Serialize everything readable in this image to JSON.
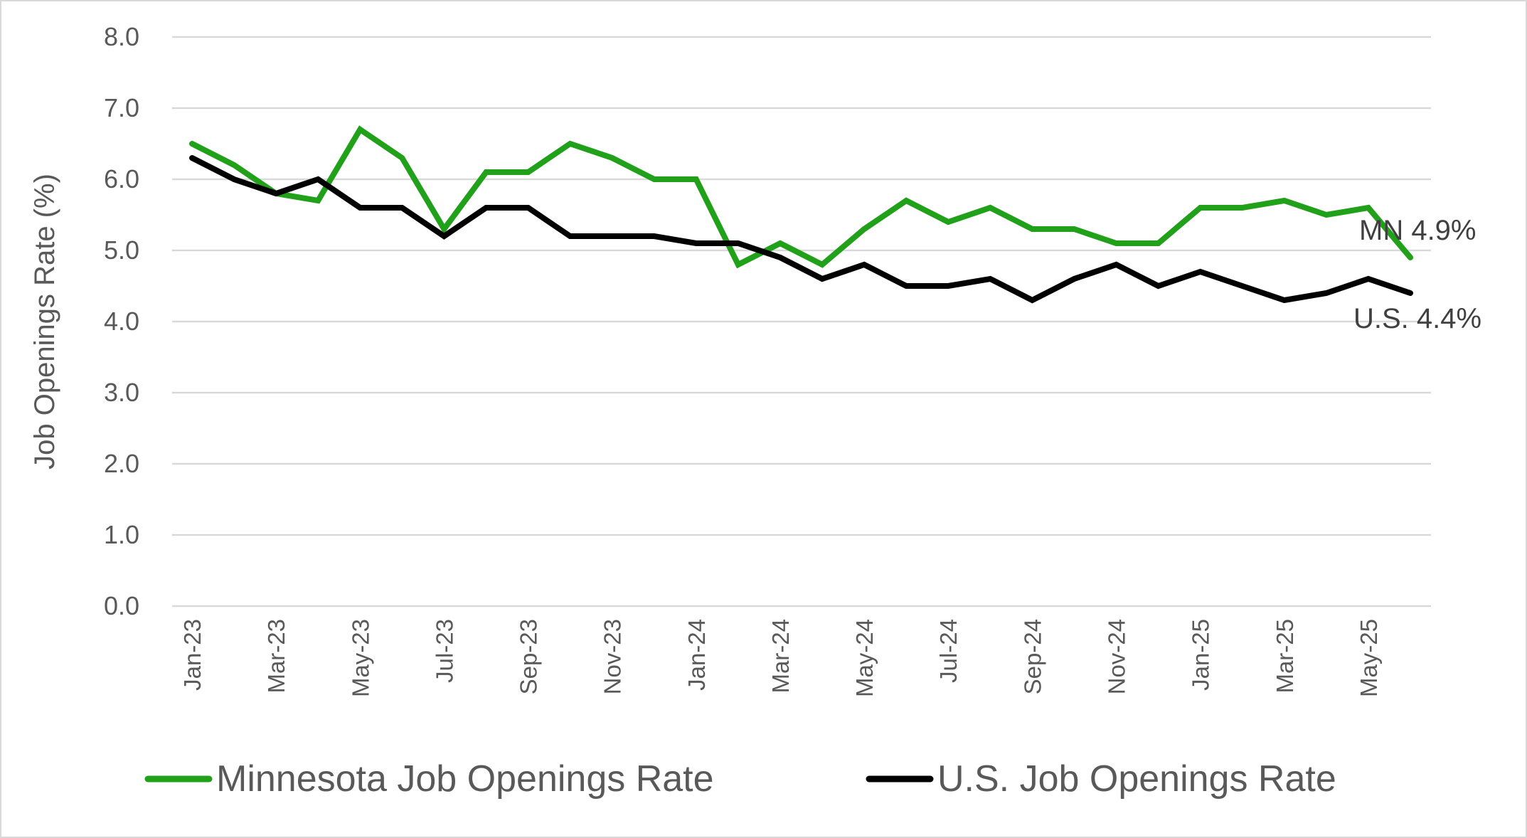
{
  "chart_data": {
    "type": "line",
    "title": "",
    "xlabel": "",
    "ylabel": "Job Openings Rate (%)",
    "ylim": [
      0,
      8
    ],
    "yticks": [
      "0.0",
      "1.0",
      "2.0",
      "3.0",
      "4.0",
      "5.0",
      "6.0",
      "7.0",
      "8.0"
    ],
    "grid": true,
    "legend_position": "bottom",
    "x": [
      "Jan-23",
      "Feb-23",
      "Mar-23",
      "Apr-23",
      "May-23",
      "Jun-23",
      "Jul-23",
      "Aug-23",
      "Sep-23",
      "Oct-23",
      "Nov-23",
      "Dec-23",
      "Jan-24",
      "Feb-24",
      "Mar-24",
      "Apr-24",
      "May-24",
      "Jun-24",
      "Jul-24",
      "Aug-24",
      "Sep-24",
      "Oct-24",
      "Nov-24",
      "Dec-24",
      "Jan-25",
      "Feb-25",
      "Mar-25",
      "Apr-25",
      "May-25",
      "Jun-25"
    ],
    "xtick_labels": [
      "Jan-23",
      "Mar-23",
      "May-23",
      "Jul-23",
      "Sep-23",
      "Nov-23",
      "Jan-24",
      "Mar-24",
      "May-24",
      "Jul-24",
      "Sep-24",
      "Nov-24",
      "Jan-25",
      "Mar-25",
      "May-25"
    ],
    "series": [
      {
        "name": "Minnesota Job Openings Rate",
        "color": "#21a01a",
        "values": [
          6.5,
          6.2,
          5.8,
          5.7,
          6.7,
          6.3,
          5.3,
          6.1,
          6.1,
          6.5,
          6.3,
          6.0,
          6.0,
          4.8,
          5.1,
          4.8,
          5.3,
          5.7,
          5.4,
          5.6,
          5.3,
          5.3,
          5.1,
          5.1,
          5.6,
          5.6,
          5.7,
          5.5,
          5.6,
          4.9
        ]
      },
      {
        "name": "U.S. Job Openings Rate",
        "color": "#000000",
        "values": [
          6.3,
          6.0,
          5.8,
          6.0,
          5.6,
          5.6,
          5.2,
          5.6,
          5.6,
          5.2,
          5.2,
          5.2,
          5.1,
          5.1,
          4.9,
          4.6,
          4.8,
          4.5,
          4.5,
          4.6,
          4.3,
          4.6,
          4.8,
          4.5,
          4.7,
          4.5,
          4.3,
          4.4,
          4.6,
          4.4
        ]
      }
    ],
    "annotations": [
      {
        "text": "MN 4.9%",
        "series": 0
      },
      {
        "text": "U.S. 4.4%",
        "series": 1
      }
    ]
  }
}
